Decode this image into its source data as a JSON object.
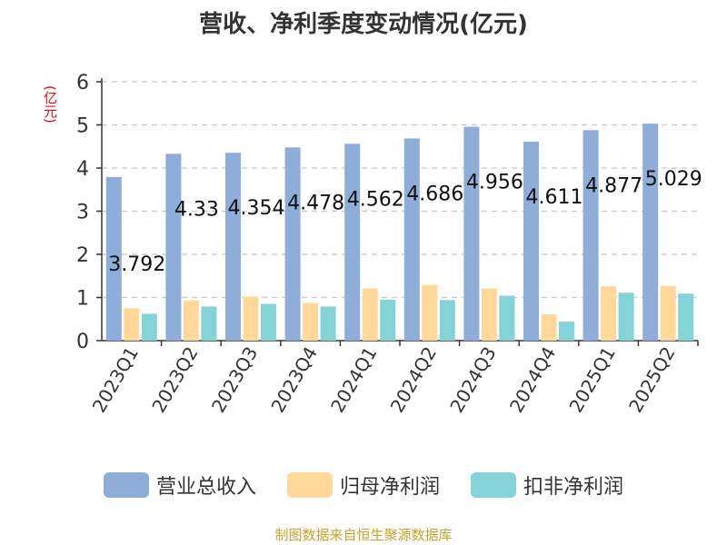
{
  "title": "营收、净利季度变动情况(亿元)",
  "unit_label": "(亿元)",
  "source": "制图数据来自恒生聚源数据库",
  "colors": {
    "revenue": "#8eadd9",
    "net_profit": "#ffd89a",
    "deducted_profit": "#84d3d6"
  },
  "chart_data": {
    "type": "bar",
    "categories": [
      "2023Q1",
      "2023Q2",
      "2023Q3",
      "2023Q4",
      "2024Q1",
      "2024Q2",
      "2024Q3",
      "2024Q4",
      "2025Q1",
      "2025Q2"
    ],
    "series": [
      {
        "name": "营业总收入",
        "values": [
          3.792,
          4.33,
          4.354,
          4.478,
          4.562,
          4.686,
          4.956,
          4.611,
          4.877,
          5.029
        ]
      },
      {
        "name": "归母净利润",
        "values": [
          0.75,
          0.93,
          1.02,
          0.87,
          1.21,
          1.29,
          1.21,
          0.61,
          1.26,
          1.27
        ]
      },
      {
        "name": "扣非净利润",
        "values": [
          0.62,
          0.79,
          0.85,
          0.79,
          0.95,
          0.94,
          1.04,
          0.44,
          1.11,
          1.09
        ]
      }
    ],
    "data_labels": [
      "3.792",
      "4.33",
      "4.354",
      "4.478",
      "4.562",
      "4.686",
      "4.956",
      "4.611",
      "4.877",
      "5.029"
    ],
    "yticks": [
      0,
      1,
      2,
      3,
      4,
      5,
      6
    ],
    "ylim": [
      0,
      6
    ],
    "grid": true,
    "legend_position": "bottom"
  }
}
